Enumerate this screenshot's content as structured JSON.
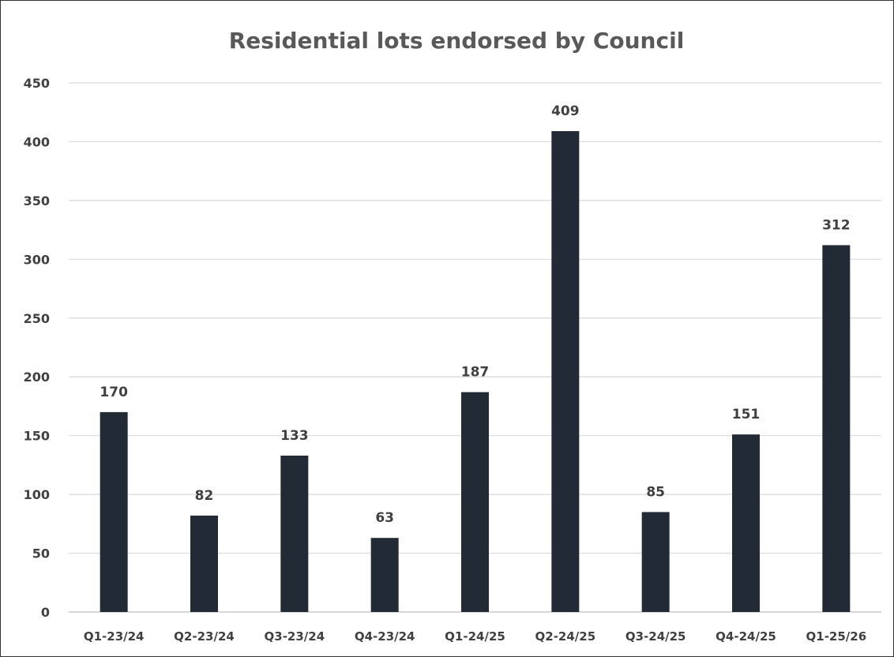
{
  "chart_data": {
    "type": "bar",
    "title": "Residential lots endorsed by Council",
    "xlabel": "",
    "ylabel": "",
    "categories": [
      "Q1-23/24",
      "Q2-23/24",
      "Q3-23/24",
      "Q4-23/24",
      "Q1-24/25",
      "Q2-24/25",
      "Q3-24/25",
      "Q4-24/25",
      "Q1-25/26"
    ],
    "values": [
      170,
      82,
      133,
      63,
      187,
      409,
      85,
      151,
      312
    ],
    "ylim": [
      0,
      450
    ],
    "yticks": [
      0,
      50,
      100,
      150,
      200,
      250,
      300,
      350,
      400,
      450
    ],
    "grid": true,
    "legend": "none",
    "data_labels": true,
    "colors": {
      "bar": "#222a35",
      "title": "#595959",
      "text": "#404040",
      "grid": "#d9d9d9"
    }
  }
}
